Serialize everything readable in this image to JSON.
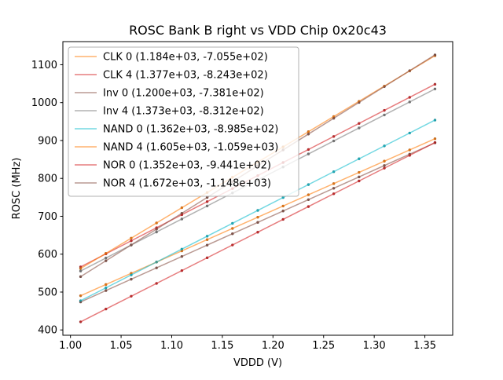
{
  "chart_data": {
    "type": "scatter",
    "title": "ROSC Bank B right vs VDD Chip 0x20c43",
    "xlabel": "VDDD (V)",
    "ylabel": "ROSC (MHz)",
    "xlim": [
      0.9925,
      1.3775
    ],
    "ylim": [
      386,
      1161
    ],
    "grid": false,
    "legend_position": "upper left",
    "xticks": [
      {
        "value": 1.0,
        "label": "1.00"
      },
      {
        "value": 1.05,
        "label": "1.05"
      },
      {
        "value": 1.1,
        "label": "1.10"
      },
      {
        "value": 1.15,
        "label": "1.15"
      },
      {
        "value": 1.2,
        "label": "1.20"
      },
      {
        "value": 1.25,
        "label": "1.25"
      },
      {
        "value": 1.3,
        "label": "1.30"
      },
      {
        "value": 1.35,
        "label": "1.35"
      }
    ],
    "yticks": [
      {
        "value": 400,
        "label": "400"
      },
      {
        "value": 500,
        "label": "500"
      },
      {
        "value": 600,
        "label": "600"
      },
      {
        "value": 700,
        "label": "700"
      },
      {
        "value": 800,
        "label": "800"
      },
      {
        "value": 900,
        "label": "900"
      },
      {
        "value": 1000,
        "label": "1000"
      },
      {
        "value": 1100,
        "label": "1100"
      }
    ],
    "x": [
      1.01,
      1.035,
      1.06,
      1.085,
      1.11,
      1.135,
      1.16,
      1.185,
      1.21,
      1.235,
      1.26,
      1.285,
      1.31,
      1.335,
      1.36
    ],
    "series": [
      {
        "name": "CLK 0",
        "legend_label": "CLK 0 (1.184e+03, -7.055e+02)",
        "slope": 1184,
        "intercept": -705.5,
        "color": "#ff7f0e",
        "values": [
          490.3,
          519.9,
          549.5,
          579.1,
          608.7,
          638.3,
          667.9,
          697.5,
          727.1,
          756.7,
          786.3,
          815.9,
          845.5,
          875.1,
          904.7
        ]
      },
      {
        "name": "CLK 4",
        "legend_label": "CLK 4 (1.377e+03, -8.243e+02)",
        "slope": 1377,
        "intercept": -824.3,
        "color": "#d62728",
        "values": [
          566.5,
          600.9,
          635.3,
          669.7,
          704.2,
          738.6,
          773.0,
          807.4,
          841.9,
          876.3,
          910.7,
          945.1,
          979.6,
          1014.0,
          1048.4
        ]
      },
      {
        "name": "Inv 0",
        "legend_label": "Inv 0 (1.200e+03, -7.381e+02)",
        "slope": 1200,
        "intercept": -738.1,
        "color": "#8c564b",
        "values": [
          473.9,
          503.9,
          533.9,
          563.9,
          593.9,
          623.9,
          653.9,
          683.9,
          713.9,
          743.9,
          773.9,
          803.9,
          833.9,
          863.9,
          893.9
        ]
      },
      {
        "name": "Inv 4",
        "legend_label": "Inv 4 (1.373e+03, -8.312e+02)",
        "slope": 1373,
        "intercept": -831.2,
        "color": "#7f7f7f",
        "values": [
          555.5,
          589.9,
          624.2,
          658.5,
          692.8,
          727.2,
          761.5,
          795.8,
          830.1,
          864.5,
          898.8,
          933.1,
          967.4,
          1001.8,
          1036.1
        ]
      },
      {
        "name": "NAND 0",
        "legend_label": "NAND 0 (1.362e+03, -8.985e+02)",
        "slope": 1362,
        "intercept": -898.5,
        "color": "#17becf",
        "values": [
          477.1,
          511.2,
          545.2,
          579.3,
          613.3,
          647.4,
          681.4,
          715.5,
          749.5,
          783.6,
          817.6,
          851.7,
          885.7,
          919.8,
          953.8
        ]
      },
      {
        "name": "NAND 4",
        "legend_label": "NAND 4 (1.605e+03, -1.059e+03)",
        "slope": 1605,
        "intercept": -1059.0,
        "color": "#ff7f0e",
        "values": [
          562.1,
          602.2,
          642.3,
          682.4,
          722.6,
          762.7,
          802.8,
          842.9,
          883.1,
          923.2,
          963.3,
          1003.4,
          1043.6,
          1083.7,
          1123.8
        ]
      },
      {
        "name": "NOR 0",
        "legend_label": "NOR 0 (1.352e+03, -9.441e+02)",
        "slope": 1352,
        "intercept": -944.1,
        "color": "#d62728",
        "values": [
          421.4,
          455.2,
          489.0,
          522.8,
          556.6,
          590.4,
          624.2,
          658.0,
          691.8,
          725.6,
          759.4,
          793.2,
          827.0,
          860.8,
          894.6
        ]
      },
      {
        "name": "NOR 4",
        "legend_label": "NOR 4 (1.672e+03, -1.148e+03)",
        "slope": 1672,
        "intercept": -1148.0,
        "color": "#8c564b",
        "values": [
          540.7,
          582.5,
          624.3,
          666.1,
          707.9,
          749.7,
          791.5,
          833.3,
          875.1,
          916.9,
          958.7,
          1000.5,
          1042.3,
          1084.1,
          1125.9
        ]
      }
    ]
  }
}
